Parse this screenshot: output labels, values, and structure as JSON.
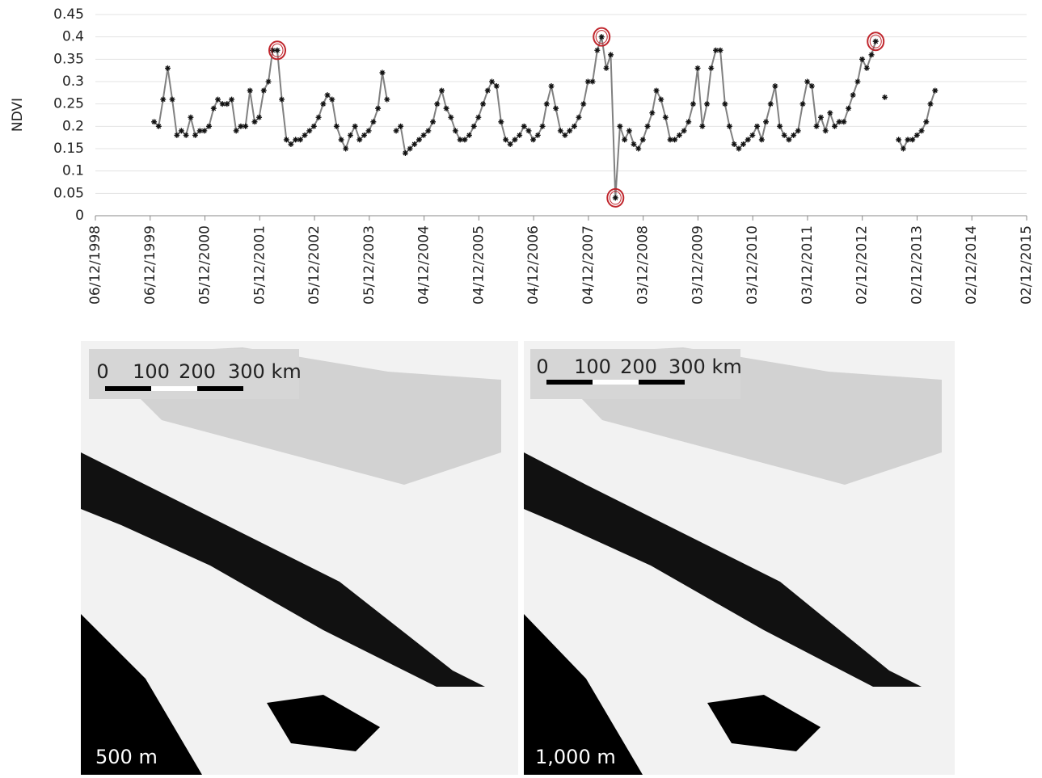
{
  "chart_data": {
    "type": "line",
    "y_label": "NDVI",
    "x": [
      "2000-01",
      "2000-02",
      "2000-03",
      "2000-04",
      "2000-05",
      "2000-06",
      "2000-07",
      "2000-08",
      "2000-09",
      "2000-10",
      "2000-11",
      "2000-12",
      "2001-01",
      "2001-02",
      "2001-03",
      "2001-04",
      "2001-05",
      "2001-06",
      "2001-07",
      "2001-08",
      "2001-09",
      "2001-10",
      "2001-11",
      "2001-12",
      "2002-01",
      "2002-02",
      "2002-03",
      "2002-04",
      "2002-05",
      "2002-06",
      "2002-07",
      "2002-08",
      "2002-09",
      "2002-10",
      "2002-11",
      "2002-12",
      "2003-01",
      "2003-02",
      "2003-03",
      "2003-04",
      "2003-05",
      "2003-06",
      "2003-07",
      "2003-08",
      "2003-09",
      "2003-10",
      "2003-11",
      "2003-12",
      "2004-01",
      "2004-02",
      "2004-03",
      "2004-04",
      "2004-05",
      "2004-06",
      "2004-07",
      "2004-08",
      "2004-09",
      "2004-10",
      "2004-11",
      "2004-12",
      "2005-01",
      "2005-02",
      "2005-03",
      "2005-04",
      "2005-05",
      "2005-06",
      "2005-07",
      "2005-08",
      "2005-09",
      "2005-10",
      "2005-11",
      "2005-12",
      "2006-01",
      "2006-02",
      "2006-03",
      "2006-04",
      "2006-05",
      "2006-06",
      "2006-07",
      "2006-08",
      "2006-09",
      "2006-10",
      "2006-11",
      "2006-12",
      "2007-01",
      "2007-02",
      "2007-03",
      "2007-04",
      "2007-05",
      "2007-06",
      "2007-07",
      "2007-08",
      "2007-09",
      "2007-10",
      "2007-11",
      "2007-12",
      "2008-01",
      "2008-02",
      "2008-03",
      "2008-04",
      "2008-05",
      "2008-06",
      "2008-07",
      "2008-08",
      "2008-09",
      "2008-10",
      "2008-11",
      "2008-12",
      "2009-01",
      "2009-02",
      "2009-03",
      "2009-04",
      "2009-05",
      "2009-06",
      "2009-07",
      "2009-08",
      "2009-09",
      "2009-10",
      "2009-11",
      "2009-12",
      "2010-01",
      "2010-02",
      "2010-03",
      "2010-04",
      "2010-05",
      "2010-06",
      "2010-07",
      "2010-08",
      "2010-09",
      "2010-10",
      "2010-11",
      "2010-12",
      "2011-01",
      "2011-02",
      "2011-03",
      "2011-04",
      "2011-05",
      "2011-06",
      "2011-07",
      "2011-08",
      "2011-09",
      "2011-10",
      "2011-11",
      "2011-12",
      "2012-01",
      "2012-02",
      "2012-03",
      "2012-04",
      "2012-05",
      "2012-06",
      "2012-07",
      "2012-08",
      "2012-09",
      "2012-10",
      "2012-11",
      "2012-12",
      "2013-01",
      "2013-02",
      "2013-03",
      "2013-04",
      "2013-05",
      "2013-06",
      "2013-07",
      "2013-08",
      "2013-09",
      "2013-10",
      "2013-11",
      "2013-12",
      "2014-01",
      "2014-02",
      "2014-03",
      "2014-04"
    ],
    "series": [
      {
        "color": "#808080",
        "marker_color": "#111111",
        "values": [
          0.21,
          0.2,
          0.26,
          0.33,
          0.26,
          0.18,
          0.19,
          0.18,
          0.22,
          0.18,
          0.19,
          0.19,
          0.2,
          0.24,
          0.26,
          0.25,
          0.25,
          0.26,
          0.19,
          0.2,
          0.2,
          0.28,
          0.21,
          0.22,
          0.28,
          0.3,
          0.37,
          0.37,
          0.26,
          0.17,
          0.16,
          0.17,
          0.17,
          0.18,
          0.19,
          0.2,
          0.22,
          0.25,
          0.27,
          0.26,
          0.2,
          0.17,
          0.15,
          0.18,
          0.2,
          0.17,
          0.18,
          0.19,
          0.21,
          0.24,
          0.32,
          0.26,
          null,
          0.19,
          0.2,
          0.14,
          0.15,
          0.16,
          0.17,
          0.18,
          0.19,
          0.21,
          0.25,
          0.28,
          0.24,
          0.22,
          0.19,
          0.17,
          0.17,
          0.18,
          0.2,
          0.22,
          0.25,
          0.28,
          0.3,
          0.29,
          0.21,
          0.17,
          0.16,
          0.17,
          0.18,
          0.2,
          0.19,
          0.17,
          0.18,
          0.2,
          0.25,
          0.29,
          0.24,
          0.19,
          0.18,
          0.19,
          0.2,
          0.22,
          0.25,
          0.3,
          0.3,
          0.37,
          0.4,
          0.33,
          0.36,
          0.04,
          0.2,
          0.17,
          0.19,
          0.16,
          0.15,
          0.17,
          0.2,
          0.23,
          0.28,
          0.26,
          0.22,
          0.17,
          0.17,
          0.18,
          0.19,
          0.21,
          0.25,
          0.33,
          0.2,
          0.25,
          0.33,
          0.37,
          0.37,
          0.25,
          0.2,
          0.16,
          0.15,
          0.16,
          0.17,
          0.18,
          0.2,
          0.17,
          0.21,
          0.25,
          0.29,
          0.2,
          0.18,
          0.17,
          0.18,
          0.19,
          0.25,
          0.3,
          0.29,
          0.2,
          0.22,
          0.19,
          0.23,
          0.2,
          0.21,
          0.21,
          0.24,
          0.27,
          0.3,
          0.35,
          0.33,
          0.36,
          0.39,
          null,
          0.265,
          null,
          null,
          0.17,
          0.15,
          0.17,
          0.17,
          0.18,
          0.19,
          0.21,
          0.25,
          0.28
        ]
      }
    ],
    "highlighted": [
      27,
      98,
      101,
      158
    ],
    "highlight_color": "#c0262d",
    "ylim": [
      0,
      0.45
    ],
    "yticks": [
      0,
      0.05,
      0.1,
      0.15,
      0.2,
      0.25,
      0.3,
      0.35,
      0.4,
      0.45
    ],
    "grid": true,
    "xlim": [
      "1998-12-06",
      "2015-12-02"
    ],
    "xticks": [
      {
        "value": "1998-12-06",
        "label": "06/12/1998"
      },
      {
        "value": "1999-12-06",
        "label": "06/12/1999"
      },
      {
        "value": "2000-12-05",
        "label": "05/12/2000"
      },
      {
        "value": "2001-12-05",
        "label": "05/12/2001"
      },
      {
        "value": "2002-12-05",
        "label": "05/12/2002"
      },
      {
        "value": "2003-12-05",
        "label": "05/12/2003"
      },
      {
        "value": "2004-12-04",
        "label": "04/12/2004"
      },
      {
        "value": "2005-12-04",
        "label": "04/12/2005"
      },
      {
        "value": "2006-12-04",
        "label": "04/12/2006"
      },
      {
        "value": "2007-12-04",
        "label": "04/12/2007"
      },
      {
        "value": "2008-12-03",
        "label": "03/12/2008"
      },
      {
        "value": "2009-12-03",
        "label": "03/12/2009"
      },
      {
        "value": "2010-12-03",
        "label": "03/12/2010"
      },
      {
        "value": "2011-12-03",
        "label": "03/12/2011"
      },
      {
        "value": "2012-12-02",
        "label": "02/12/2012"
      },
      {
        "value": "2013-12-02",
        "label": "02/12/2013"
      },
      {
        "value": "2014-12-02",
        "label": "02/12/2014"
      },
      {
        "value": "2015-12-02",
        "label": "02/12/2015"
      }
    ]
  },
  "panels": [
    {
      "label": "500 m",
      "scale_labels": [
        "0",
        "100",
        "200",
        "300 km"
      ]
    },
    {
      "label": "1,000 m",
      "scale_labels": [
        "0",
        "100",
        "200",
        "300 km"
      ]
    }
  ]
}
